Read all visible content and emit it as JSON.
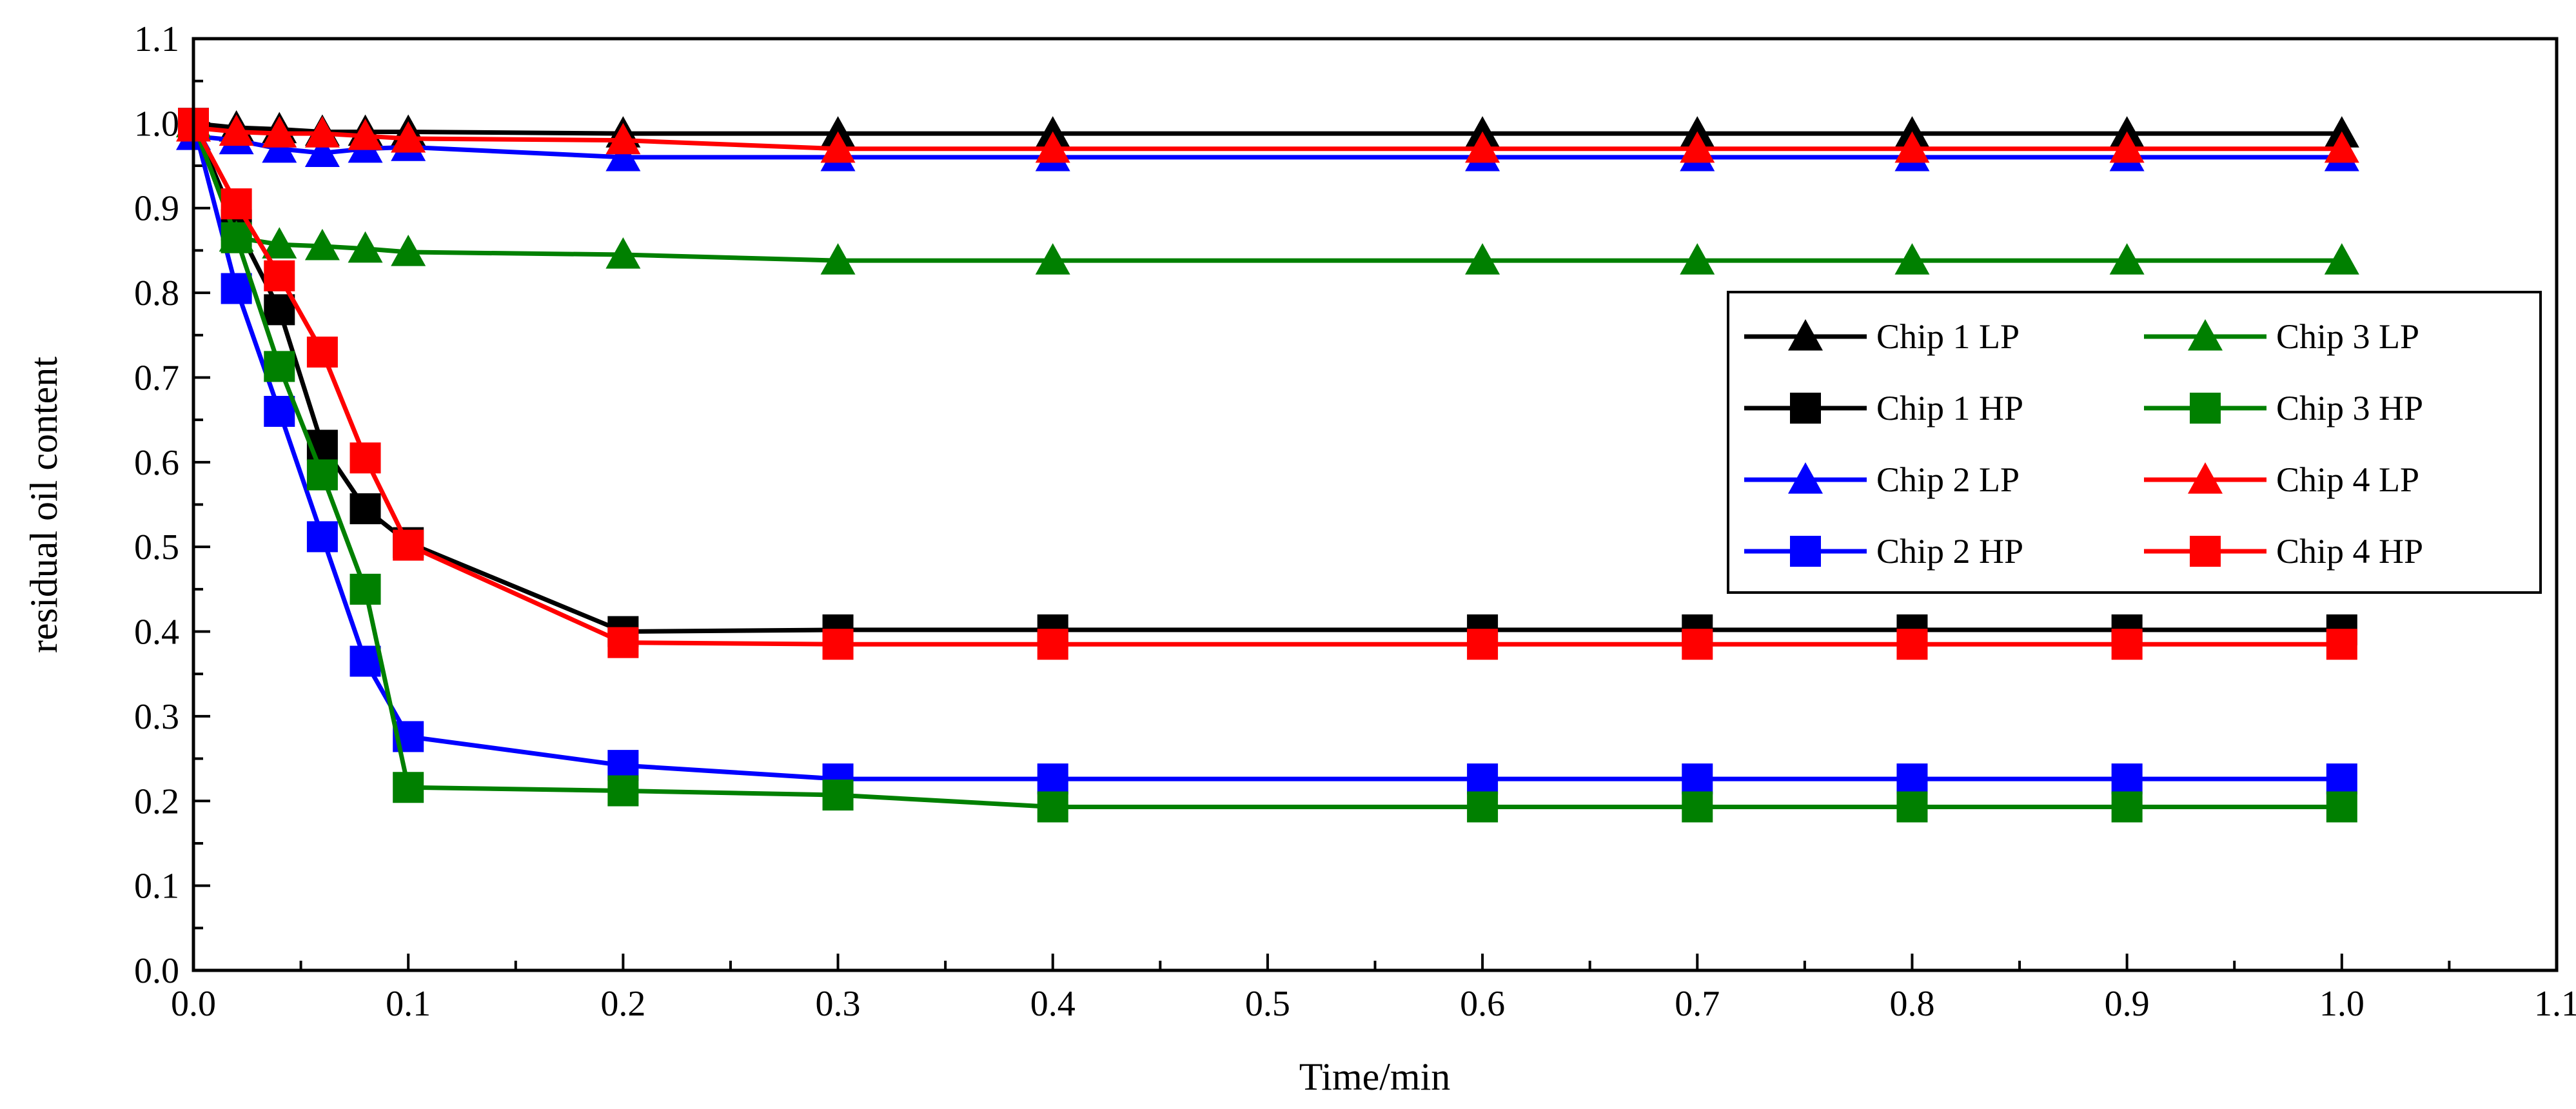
{
  "chart_data": {
    "type": "line",
    "title": "",
    "xlabel": "Time/min",
    "ylabel": "residual oil content",
    "xlim": [
      0.0,
      1.1
    ],
    "ylim": [
      0.0,
      1.1
    ],
    "xticks": [
      "0.0",
      "0.1",
      "0.2",
      "0.3",
      "0.4",
      "0.5",
      "0.6",
      "0.7",
      "0.8",
      "0.9",
      "1.0",
      "1.1"
    ],
    "yticks": [
      "0.0",
      "0.1",
      "0.2",
      "0.3",
      "0.4",
      "0.5",
      "0.6",
      "0.7",
      "0.8",
      "0.9",
      "1.0",
      "1.1"
    ],
    "grid": false,
    "legend_position": "right",
    "colors": {
      "chip1": "#000000",
      "chip2": "#0000ff",
      "chip3": "#008000",
      "chip4": "#ff0000"
    },
    "series": [
      {
        "name": "Chip 1 LP",
        "color": "#000000",
        "marker": "triangle",
        "x": [
          0,
          0.02,
          0.04,
          0.06,
          0.08,
          0.1,
          0.2,
          0.3,
          0.4,
          0.6,
          0.7,
          0.8,
          0.9,
          1.0
        ],
        "y": [
          1.0,
          0.995,
          0.993,
          0.99,
          0.99,
          0.99,
          0.988,
          0.988,
          0.988,
          0.988,
          0.988,
          0.988,
          0.988,
          0.988
        ]
      },
      {
        "name": "Chip 1 HP",
        "color": "#000000",
        "marker": "square",
        "x": [
          0,
          0.02,
          0.04,
          0.06,
          0.08,
          0.1,
          0.2,
          0.3,
          0.4,
          0.6,
          0.7,
          0.8,
          0.9,
          1.0
        ],
        "y": [
          1.0,
          0.88,
          0.78,
          0.62,
          0.545,
          0.505,
          0.4,
          0.402,
          0.402,
          0.402,
          0.402,
          0.402,
          0.402,
          0.402
        ]
      },
      {
        "name": "Chip 2 LP",
        "color": "#0000ff",
        "marker": "triangle",
        "x": [
          0,
          0.02,
          0.04,
          0.06,
          0.08,
          0.1,
          0.2,
          0.3,
          0.4,
          0.6,
          0.7,
          0.8,
          0.9,
          1.0
        ],
        "y": [
          0.985,
          0.98,
          0.97,
          0.965,
          0.97,
          0.972,
          0.96,
          0.96,
          0.96,
          0.96,
          0.96,
          0.96,
          0.96,
          0.96
        ]
      },
      {
        "name": "Chip 2 HP",
        "color": "#0000ff",
        "marker": "square",
        "x": [
          0,
          0.02,
          0.04,
          0.06,
          0.08,
          0.1,
          0.2,
          0.3,
          0.4,
          0.6,
          0.7,
          0.8,
          0.9,
          1.0
        ],
        "y": [
          1.0,
          0.805,
          0.66,
          0.512,
          0.365,
          0.276,
          0.242,
          0.226,
          0.226,
          0.226,
          0.226,
          0.226,
          0.226,
          0.226
        ]
      },
      {
        "name": "Chip 3 LP",
        "color": "#008000",
        "marker": "triangle",
        "x": [
          0,
          0.02,
          0.04,
          0.06,
          0.08,
          0.1,
          0.2,
          0.3,
          0.4,
          0.6,
          0.7,
          0.8,
          0.9,
          1.0
        ],
        "y": [
          1.0,
          0.865,
          0.857,
          0.855,
          0.852,
          0.848,
          0.845,
          0.838,
          0.838,
          0.838,
          0.838,
          0.838,
          0.838,
          0.838
        ]
      },
      {
        "name": "Chip 3 HP",
        "color": "#008000",
        "marker": "square",
        "x": [
          0,
          0.02,
          0.04,
          0.06,
          0.08,
          0.1,
          0.2,
          0.3,
          0.4,
          0.6,
          0.7,
          0.8,
          0.9,
          1.0
        ],
        "y": [
          1.0,
          0.865,
          0.713,
          0.585,
          0.45,
          0.216,
          0.212,
          0.207,
          0.193,
          0.193,
          0.193,
          0.193,
          0.193,
          0.193
        ]
      },
      {
        "name": "Chip 4 LP",
        "color": "#ff0000",
        "marker": "triangle",
        "x": [
          0,
          0.02,
          0.04,
          0.06,
          0.08,
          0.1,
          0.2,
          0.3,
          0.4,
          0.6,
          0.7,
          0.8,
          0.9,
          1.0
        ],
        "y": [
          0.995,
          0.99,
          0.988,
          0.988,
          0.985,
          0.982,
          0.98,
          0.97,
          0.97,
          0.97,
          0.97,
          0.97,
          0.97,
          0.97
        ]
      },
      {
        "name": "Chip 4 HP",
        "color": "#ff0000",
        "marker": "square",
        "x": [
          0,
          0.02,
          0.04,
          0.06,
          0.08,
          0.1,
          0.2,
          0.3,
          0.4,
          0.6,
          0.7,
          0.8,
          0.9,
          1.0
        ],
        "y": [
          1.0,
          0.905,
          0.82,
          0.73,
          0.605,
          0.502,
          0.387,
          0.385,
          0.385,
          0.385,
          0.385,
          0.385,
          0.385,
          0.385
        ]
      }
    ],
    "legend_order": [
      [
        "Chip 1 LP",
        "Chip 3 LP"
      ],
      [
        "Chip 1 HP",
        "Chip 3 HP"
      ],
      [
        "Chip 2 LP",
        "Chip 4 LP"
      ],
      [
        "Chip 2 HP",
        "Chip 4 HP"
      ]
    ]
  }
}
